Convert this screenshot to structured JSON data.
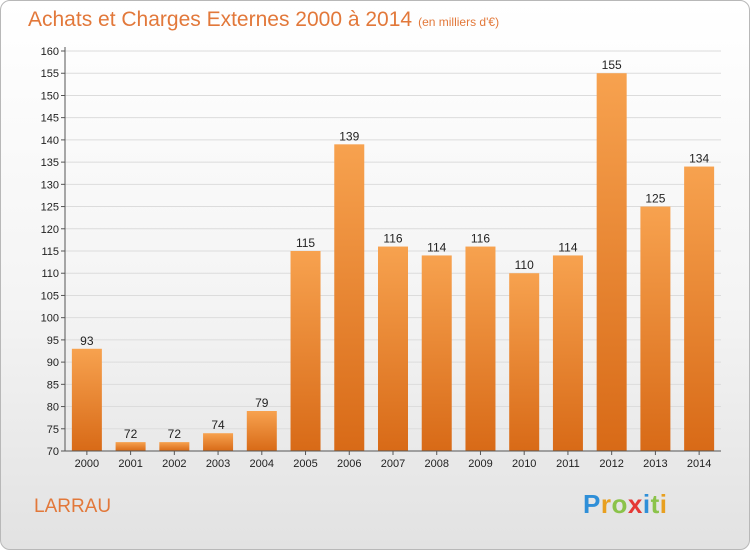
{
  "title": "Achats et Charges Externes 2000 à 2014",
  "unit": "(en milliers d'€)",
  "commune": "LARRAU",
  "logo": {
    "letters": [
      {
        "ch": "P",
        "color": "#2f8fd8"
      },
      {
        "ch": "r",
        "color": "#e8a020"
      },
      {
        "ch": "o",
        "color": "#8bc34a"
      },
      {
        "ch": "x",
        "color": "#e53935"
      },
      {
        "ch": "i",
        "color": "#2f8fd8"
      },
      {
        "ch": "t",
        "color": "#8bc34a"
      },
      {
        "ch": "i",
        "color": "#e8a020"
      }
    ]
  },
  "chart_data": {
    "type": "bar",
    "title": "Achats et Charges Externes 2000 à 2014",
    "subtitle": "(en milliers d'€)",
    "categories": [
      "2000",
      "2001",
      "2002",
      "2003",
      "2004",
      "2005",
      "2006",
      "2007",
      "2008",
      "2009",
      "2010",
      "2011",
      "2012",
      "2013",
      "2014"
    ],
    "values": [
      93,
      72,
      72,
      74,
      79,
      115,
      139,
      116,
      114,
      116,
      110,
      114,
      155,
      125,
      134
    ],
    "ylim": [
      70,
      160
    ],
    "yticks": [
      70,
      75,
      80,
      85,
      90,
      95,
      100,
      105,
      110,
      115,
      120,
      125,
      130,
      135,
      140,
      145,
      150,
      155,
      160
    ],
    "grid": true,
    "bar_color": "#f0893a",
    "legend": "none"
  }
}
